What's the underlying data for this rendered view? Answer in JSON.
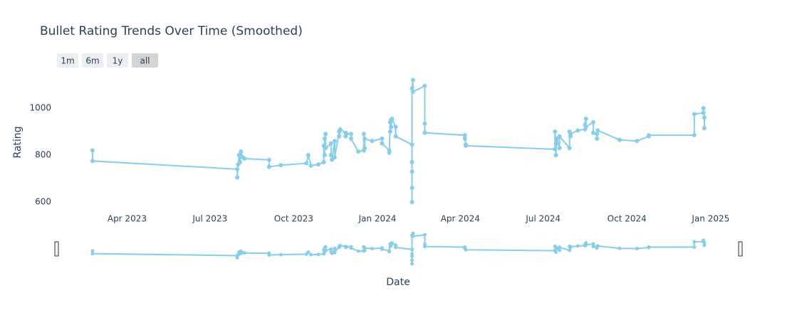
{
  "chart_data": {
    "type": "line",
    "title": "Bullet Rating Trends Over Time (Smoothed)",
    "x_label": "Date",
    "y_label": "Rating",
    "range_buttons": [
      "1m",
      "6m",
      "1y",
      "all"
    ],
    "active_button": 3,
    "markers": true,
    "range_slider": true,
    "x": [
      "2023-02-22",
      "2023-02-22",
      "2023-07-31",
      "2023-07-31",
      "2023-08-01",
      "2023-08-02",
      "2023-08-03",
      "2023-08-04",
      "2023-08-06",
      "2023-08-08",
      "2023-09-04",
      "2023-09-04",
      "2023-09-17",
      "2023-10-15",
      "2023-10-17",
      "2023-10-20",
      "2023-10-28",
      "2023-11-03",
      "2023-11-03",
      "2023-11-04",
      "2023-11-04",
      "2023-11-05",
      "2023-11-05",
      "2023-11-11",
      "2023-11-11",
      "2023-11-12",
      "2023-11-15",
      "2023-11-15",
      "2023-11-20",
      "2023-11-20",
      "2023-11-21",
      "2023-11-27",
      "2023-11-27",
      "2023-11-28",
      "2023-12-03",
      "2023-12-03",
      "2023-12-11",
      "2023-12-17",
      "2023-12-17",
      "2023-12-18",
      "2023-12-18",
      "2023-12-26",
      "2024-01-06",
      "2024-01-06",
      "2024-01-14",
      "2024-01-14",
      "2024-01-15",
      "2024-01-15",
      "2024-01-16",
      "2024-01-16",
      "2024-01-17",
      "2024-01-21",
      "2024-01-21",
      "2024-02-08",
      "2024-02-08",
      "2024-02-08",
      "2024-02-08",
      "2024-02-08",
      "2024-02-08",
      "2024-02-09",
      "2024-02-09",
      "2024-02-22",
      "2024-02-22",
      "2024-02-22",
      "2024-04-06",
      "2024-04-06",
      "2024-04-07",
      "2024-04-07",
      "2024-07-14",
      "2024-07-14",
      "2024-07-15",
      "2024-07-15",
      "2024-07-16",
      "2024-07-19",
      "2024-07-19",
      "2024-07-30",
      "2024-07-30",
      "2024-07-31",
      "2024-07-31",
      "2024-08-08",
      "2024-08-16",
      "2024-08-16",
      "2024-08-17",
      "2024-08-17",
      "2024-08-25",
      "2024-08-25",
      "2024-08-29",
      "2024-08-29",
      "2024-08-30",
      "2024-09-23",
      "2024-10-12",
      "2024-10-25",
      "2024-10-25",
      "2024-12-14",
      "2024-12-14",
      "2024-12-24",
      "2024-12-24",
      "2024-12-25",
      "2024-12-25"
    ],
    "series": [
      {
        "name": "Rating",
        "color": "#87ceeb",
        "values": [
          820,
          775,
          740,
          705,
          760,
          800,
          770,
          815,
          790,
          785,
          780,
          750,
          757,
          765,
          800,
          755,
          760,
          770,
          840,
          800,
          870,
          890,
          830,
          850,
          800,
          780,
          860,
          790,
          900,
          880,
          910,
          895,
          880,
          890,
          890,
          870,
          815,
          820,
          890,
          830,
          870,
          860,
          870,
          850,
          820,
          810,
          940,
          900,
          950,
          920,
          955,
          920,
          880,
          845,
          600,
          660,
          770,
          730,
          1085,
          1120,
          1070,
          1095,
          935,
          895,
          885,
          870,
          845,
          840,
          825,
          900,
          850,
          800,
          870,
          830,
          880,
          830,
          900,
          880,
          890,
          905,
          910,
          930,
          955,
          920,
          940,
          895,
          890,
          870,
          905,
          865,
          860,
          880,
          885,
          885,
          975,
          980,
          1000,
          960,
          915
        ]
      }
    ],
    "xlim": [
      "2023-01-14",
      "2025-02-03"
    ],
    "ylim": [
      576,
      1158
    ],
    "xticks": [
      {
        "value": "2023-04-01",
        "label": "Apr 2023"
      },
      {
        "value": "2023-07-01",
        "label": "Jul 2023"
      },
      {
        "value": "2023-10-01",
        "label": "Oct 2023"
      },
      {
        "value": "2024-01-01",
        "label": "Jan 2024"
      },
      {
        "value": "2024-04-01",
        "label": "Apr 2024"
      },
      {
        "value": "2024-07-01",
        "label": "Jul 2024"
      },
      {
        "value": "2024-10-01",
        "label": "Oct 2024"
      },
      {
        "value": "2025-01-01",
        "label": "Jan 2025"
      }
    ],
    "yticks": [
      600,
      800,
      1000
    ],
    "grid": false
  }
}
